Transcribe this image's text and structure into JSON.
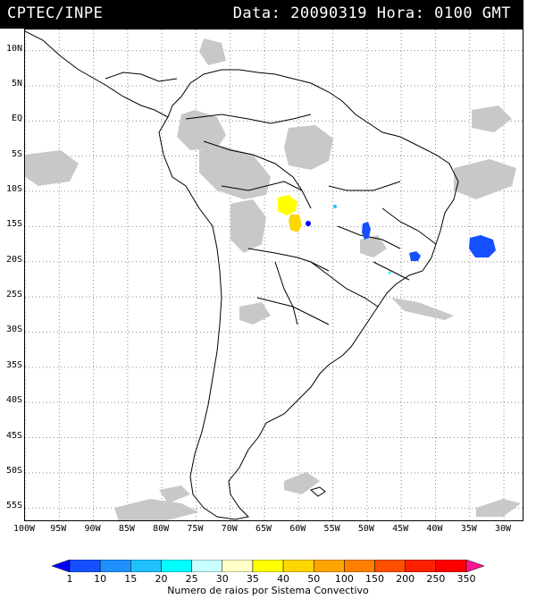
{
  "header": {
    "source": "CPTEC/INPE",
    "datetime": "Data: 20090319 Hora: 0100 GMT"
  },
  "axes": {
    "lat_labels": [
      "10N",
      "5N",
      "EQ",
      "5S",
      "10S",
      "15S",
      "20S",
      "25S",
      "30S",
      "35S",
      "40S",
      "45S",
      "50S",
      "55S"
    ],
    "lon_labels": [
      "100W",
      "95W",
      "90W",
      "85W",
      "80W",
      "75W",
      "70W",
      "65W",
      "60W",
      "55W",
      "50W",
      "45W",
      "40W",
      "35W",
      "30W"
    ],
    "lat_values": [
      10,
      5,
      0,
      -5,
      -10,
      -15,
      -20,
      -25,
      -30,
      -35,
      -40,
      -45,
      -50,
      -55
    ],
    "lon_values": [
      -100,
      -95,
      -90,
      -85,
      -80,
      -75,
      -70,
      -65,
      -60,
      -55,
      -50,
      -45,
      -40,
      -35,
      -30
    ]
  },
  "legend": {
    "labels": [
      "1",
      "10",
      "15",
      "20",
      "25",
      "30",
      "35",
      "40",
      "50",
      "100",
      "150",
      "200",
      "250",
      "350"
    ],
    "colors": [
      "#0000ff",
      "#1450ff",
      "#2090ff",
      "#20c0ff",
      "#00ffff",
      "#c8ffff",
      "#ffffc8",
      "#ffff00",
      "#ffd700",
      "#ffa500",
      "#ff8000",
      "#ff5000",
      "#ff2000",
      "#ff0000",
      "#ff1493"
    ],
    "caption": "Numero de raios por Sistema Convectivo"
  },
  "colors": {
    "cloud": "#c8c8c8",
    "coast": "#000000",
    "grid": "#888888"
  }
}
